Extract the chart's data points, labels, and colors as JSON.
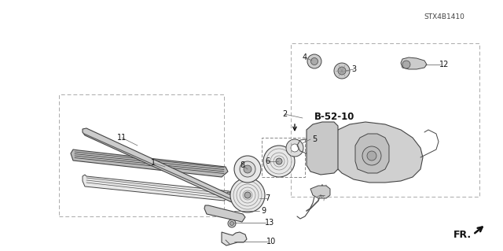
{
  "bg_color": "#ffffff",
  "line_color": "#444444",
  "dark_color": "#111111",
  "gray_fill": "#cccccc",
  "light_gray": "#e8e8e8",
  "mid_gray": "#999999",
  "part_id": "STX4B1410",
  "b5210": "B-52-10",
  "fr_text": "FR.",
  "label_color": "#111111",
  "dashed_box_color": "#999999"
}
